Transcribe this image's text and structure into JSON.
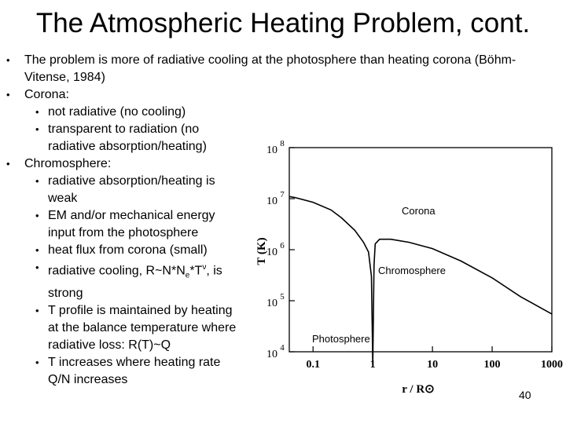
{
  "slide": {
    "title": "The Atmospheric Heating Problem, cont.",
    "bullets": {
      "b1": "The problem is more of radiative cooling at the photosphere than heating corona (Böhm-Vitense, 1984)",
      "b2": "Corona:",
      "b2_1": "not radiative (no cooling)",
      "b2_2": "transparent to radiation (no radiative absorption/heating)",
      "b3": "Chromosphere:",
      "b3_1": "radiative absorption/heating is weak",
      "b3_2": "EM and/or mechanical energy input from the photosphere",
      "b3_3": "heat flux from corona (small)",
      "b3_4_pre": "radiative cooling, R~N*N",
      "b3_4_sub": "e",
      "b3_4_mid": "*T",
      "b3_4_sup": "ν",
      "b3_4_post": ", is strong",
      "b3_5": "T profile is maintained by heating at the balance temperature where radiative loss: R(T)~Q",
      "b3_6": "T increases where heating rate Q/N increases"
    },
    "page_number": "40"
  },
  "chart_data": {
    "type": "line",
    "xlabel": "r / R⊙",
    "ylabel": "T (K)",
    "x_scale": "log",
    "y_scale": "log",
    "xlim": [
      0.04,
      1000
    ],
    "ylim": [
      10000,
      100000000
    ],
    "x_ticks": [
      {
        "label": "0.1"
      },
      {
        "label": "1"
      },
      {
        "label": "10"
      },
      {
        "label": "100"
      },
      {
        "label": "1000"
      }
    ],
    "y_ticks": [
      {
        "exp": "4"
      },
      {
        "exp": "5"
      },
      {
        "exp": "6"
      },
      {
        "exp": "7"
      },
      {
        "exp": "8"
      }
    ],
    "y_tick_base": "10",
    "annotations": {
      "corona": "Corona",
      "chromosphere": "Chromosphere",
      "photosphere": "Photosphere"
    },
    "series": [
      {
        "x": [
          0.04,
          0.05,
          0.1,
          0.2,
          0.3,
          0.5,
          0.7,
          0.85,
          0.95,
          0.98,
          1.0,
          1.02,
          1.05,
          1.1,
          1.3,
          2,
          4,
          10,
          30,
          100,
          300,
          1000
        ],
        "y": [
          11000000,
          10500000,
          8500000,
          6000000,
          4200000,
          2400000,
          1400000,
          900000,
          300000,
          30000,
          5500,
          30000,
          500000,
          1300000,
          1600000,
          1600000,
          1400000,
          1050000,
          600000,
          280000,
          120000,
          55000
        ]
      }
    ]
  }
}
